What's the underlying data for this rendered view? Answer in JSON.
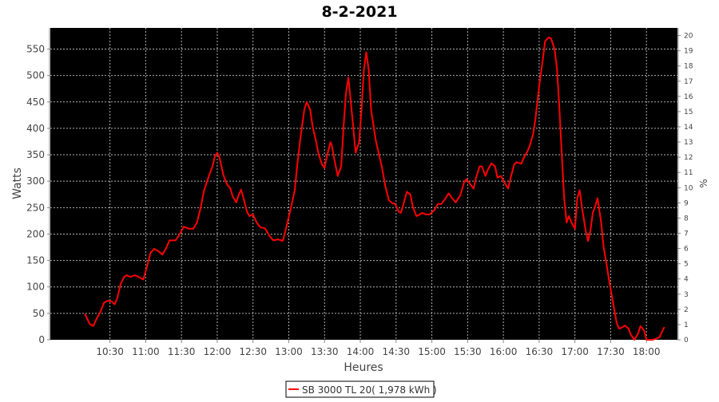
{
  "chart_data": {
    "type": "line",
    "title": "8-2-2021",
    "xlabel": "Heures",
    "ylabel": "Watts",
    "y2label": "%",
    "xlim": [
      "09:40",
      "18:26"
    ],
    "ylim": [
      0,
      590
    ],
    "y2lim": [
      0,
      20.5
    ],
    "x_ticks": [
      "10:30",
      "11:00",
      "11:30",
      "12:00",
      "12:30",
      "13:00",
      "13:30",
      "14:00",
      "14:30",
      "15:00",
      "15:30",
      "16:00",
      "16:30",
      "17:00",
      "17:30",
      "18:00"
    ],
    "y_ticks": [
      0,
      50,
      100,
      150,
      200,
      250,
      300,
      350,
      400,
      450,
      500,
      550
    ],
    "y2_ticks": [
      0,
      1,
      2,
      3,
      4,
      5,
      6,
      7,
      8,
      9,
      10,
      11,
      12,
      13,
      14,
      15,
      16,
      17,
      18,
      19,
      20
    ],
    "grid": true,
    "legend_position": "bottom",
    "colors": {
      "background": "#000000",
      "series": "#ff0000",
      "grid": "#b0b0b0"
    },
    "series": [
      {
        "name": "SB 3000 TL 20( 1,978 kWh )",
        "x": [
          "10:09",
          "10:13",
          "10:16",
          "10:18",
          "10:22",
          "10:25",
          "10:28",
          "10:31",
          "10:34",
          "10:36",
          "10:39",
          "10:42",
          "10:44",
          "10:47",
          "10:51",
          "10:54",
          "10:58",
          "11:01",
          "11:04",
          "11:07",
          "11:11",
          "11:14",
          "11:17",
          "11:20",
          "11:25",
          "11:28",
          "11:32",
          "11:36",
          "11:40",
          "11:43",
          "11:46",
          "11:49",
          "11:53",
          "11:56",
          "11:58",
          "12:00",
          "12:02",
          "12:05",
          "12:08",
          "12:11",
          "12:13",
          "12:16",
          "12:18",
          "12:20",
          "12:22",
          "12:25",
          "12:27",
          "12:30",
          "12:33",
          "12:36",
          "12:40",
          "12:44",
          "12:47",
          "12:51",
          "12:55",
          "12:57",
          "13:00",
          "13:02",
          "13:05",
          "13:07",
          "13:10",
          "13:13",
          "13:15",
          "13:18",
          "13:20",
          "13:23",
          "13:25",
          "13:28",
          "13:30",
          "13:32",
          "13:35",
          "13:36",
          "13:38",
          "13:41",
          "13:44",
          "13:46",
          "13:48",
          "13:50",
          "13:52",
          "13:54",
          "13:56",
          "13:59",
          "14:01",
          "14:03",
          "14:05",
          "14:07",
          "14:09",
          "14:13",
          "14:16",
          "14:18",
          "14:21",
          "14:24",
          "14:27",
          "14:29",
          "14:32",
          "14:34",
          "14:36",
          "14:39",
          "14:42",
          "14:44",
          "14:47",
          "14:49",
          "14:52",
          "14:55",
          "14:58",
          "15:02",
          "15:05",
          "15:08",
          "15:11",
          "15:14",
          "15:17",
          "15:20",
          "15:24",
          "15:27",
          "15:29",
          "15:32",
          "15:35",
          "15:37",
          "15:40",
          "15:42",
          "15:45",
          "15:47",
          "15:50",
          "15:53",
          "15:55",
          "15:58",
          "16:00",
          "16:04",
          "16:06",
          "16:09",
          "16:11",
          "16:15",
          "16:17",
          "16:20",
          "16:22",
          "16:25",
          "16:27",
          "16:30",
          "16:33",
          "16:35",
          "16:38",
          "16:40",
          "16:43",
          "16:45",
          "16:47",
          "16:49",
          "16:51",
          "16:53",
          "16:55",
          "16:57",
          "17:00",
          "17:02",
          "17:04",
          "17:06",
          "17:09",
          "17:11",
          "17:13",
          "17:15",
          "17:17",
          "17:19",
          "17:22",
          "17:24",
          "17:27",
          "17:29",
          "17:32",
          "17:35",
          "17:37",
          "17:40",
          "17:42",
          "17:45",
          "17:47",
          "17:50",
          "17:53",
          "17:55",
          "17:58",
          "18:00",
          "18:03",
          "18:05",
          "18:08",
          "18:11",
          "18:13",
          "18:15"
        ],
        "y": [
          49,
          30,
          26,
          36,
          53,
          70,
          74,
          73,
          67,
          78,
          106,
          119,
          122,
          119,
          122,
          119,
          114,
          138,
          164,
          172,
          167,
          161,
          173,
          188,
          188,
          198,
          214,
          210,
          210,
          222,
          249,
          283,
          310,
          328,
          347,
          354,
          344,
          313,
          295,
          286,
          271,
          260,
          274,
          284,
          268,
          242,
          234,
          237,
          222,
          213,
          211,
          196,
          188,
          190,
          187,
          204,
          233,
          252,
          283,
          328,
          386,
          435,
          450,
          435,
          404,
          374,
          351,
          331,
          325,
          347,
          374,
          369,
          344,
          310,
          328,
          404,
          468,
          496,
          450,
          404,
          354,
          374,
          435,
          511,
          544,
          511,
          435,
          377,
          347,
          328,
          290,
          264,
          258,
          258,
          243,
          240,
          255,
          280,
          275,
          252,
          234,
          236,
          240,
          237,
          237,
          245,
          257,
          257,
          266,
          277,
          268,
          260,
          274,
          298,
          304,
          295,
          286,
          306,
          328,
          328,
          310,
          322,
          334,
          328,
          307,
          310,
          301,
          286,
          306,
          331,
          336,
          333,
          344,
          356,
          366,
          389,
          420,
          480,
          529,
          565,
          572,
          570,
          549,
          511,
          435,
          351,
          268,
          222,
          234,
          222,
          210,
          268,
          283,
          249,
          207,
          187,
          207,
          240,
          252,
          268,
          222,
          176,
          137,
          108,
          70,
          32,
          21,
          24,
          27,
          21,
          9,
          0,
          12,
          26,
          18,
          0,
          0,
          0,
          2,
          5,
          15,
          24
        ]
      }
    ]
  }
}
